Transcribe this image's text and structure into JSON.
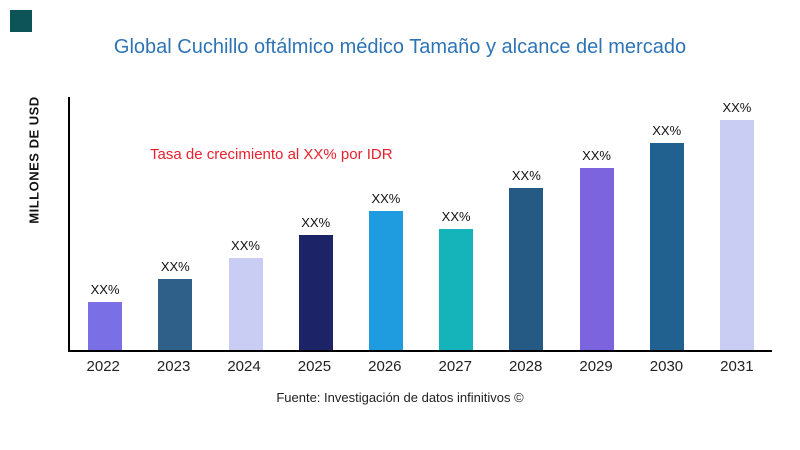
{
  "colors": {
    "title": "#2e74b5",
    "annotation": "#e8212e",
    "corner_square": "#0d5458"
  },
  "source": "Fuente: Investigación de datos infinitivos ©",
  "chart_data": {
    "type": "bar",
    "title": "Global Cuchillo oftálmico médico Tamaño y alcance del mercado",
    "ylabel": "MILLONES DE USD",
    "xlabel": "",
    "annotation": "Tasa de crecimiento al XX% por IDR",
    "categories": [
      "2022",
      "2023",
      "2024",
      "2025",
      "2026",
      "2027",
      "2028",
      "2029",
      "2030",
      "2031"
    ],
    "values": [
      19,
      28,
      36.5,
      45.5,
      55,
      48,
      64,
      72,
      82,
      91
    ],
    "bar_labels": [
      "XX%",
      "XX%",
      "XX%",
      "XX%",
      "XX%",
      "XX%",
      "XX%",
      "XX%",
      "XX%",
      "XX%"
    ],
    "bar_colors": [
      "#7a6fe4",
      "#2e6089",
      "#c9cdf3",
      "#1c2366",
      "#1f9cdf",
      "#14b4ba",
      "#255a85",
      "#7c64de",
      "#20618f",
      "#c9cdf3"
    ],
    "ylim": [
      0,
      100
    ],
    "grid": false,
    "legend": false
  }
}
